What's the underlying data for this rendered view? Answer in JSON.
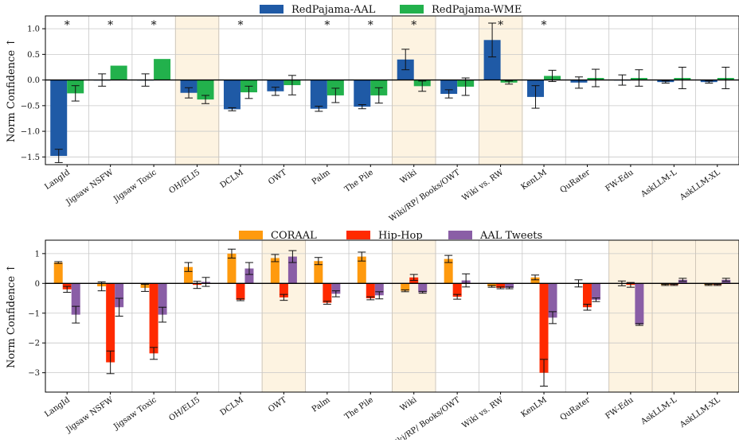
{
  "chart_data": [
    {
      "type": "bar",
      "ylabel": "Norm Confidence ↑",
      "ylim": [
        -1.65,
        1.25
      ],
      "yticks": [
        -1.5,
        -1.0,
        -0.5,
        0.0,
        0.5,
        1.0
      ],
      "ytick_labels": [
        "−1.5",
        "−1.0",
        "−0.5",
        "0.0",
        "0.5",
        "1.0"
      ],
      "grid": true,
      "legend_position": "top-center",
      "categories": [
        "LangId",
        "Jigsaw NSFW",
        "Jigsaw Toxic",
        "OH/ELI5",
        "DCLM",
        "OWT",
        "Palm",
        "The Pile",
        "Wiki",
        "Wiki/RP/ Books/OWT",
        "Wiki vs. RW",
        "KenLM",
        "QuRater",
        "FW-Edu",
        "AskLLM-L",
        "AskLLM-XL"
      ],
      "highlighted": [
        "OH/ELI5",
        "Wiki",
        "Wiki vs. RW"
      ],
      "significance_marker": "*",
      "significant": [
        "LangId",
        "Jigsaw NSFW",
        "Jigsaw Toxic",
        "DCLM",
        "Palm",
        "The Pile",
        "Wiki",
        "Wiki vs. RW",
        "KenLM"
      ],
      "series": [
        {
          "name": "RedPajama-AAL",
          "color": "#1f5aa6",
          "values": [
            -1.48,
            0.0,
            0.0,
            -0.25,
            -0.57,
            -0.22,
            -0.56,
            -0.52,
            0.4,
            -0.27,
            0.78,
            -0.33,
            -0.05,
            0.0,
            -0.04,
            -0.04
          ],
          "errors": [
            0.13,
            0.12,
            0.12,
            0.1,
            0.03,
            0.08,
            0.05,
            0.04,
            0.2,
            0.08,
            0.33,
            0.22,
            0.11,
            0.1,
            0.02,
            0.02
          ]
        },
        {
          "name": "RedPajama-WME",
          "color": "#22b14c",
          "values": [
            -0.26,
            0.28,
            0.41,
            -0.38,
            -0.24,
            -0.1,
            -0.3,
            -0.3,
            -0.12,
            -0.13,
            -0.05,
            0.08,
            0.04,
            0.04,
            0.04,
            0.04
          ],
          "errors": [
            0.15,
            0.0,
            0.0,
            0.08,
            0.12,
            0.19,
            0.14,
            0.15,
            0.1,
            0.17,
            0.03,
            0.11,
            0.17,
            0.16,
            0.21,
            0.21
          ]
        }
      ]
    },
    {
      "type": "bar",
      "ylabel": "Norm Confidence ↑",
      "ylim": [
        -3.65,
        1.45
      ],
      "yticks": [
        -3,
        -2,
        -1,
        0,
        1
      ],
      "ytick_labels": [
        "−3",
        "−2",
        "−1",
        "0",
        "1"
      ],
      "grid": true,
      "legend_position": "top-center",
      "categories": [
        "LangId",
        "Jigsaw NSFW",
        "Jigsaw Toxic",
        "OH/ELI5",
        "DCLM",
        "OWT",
        "Palm",
        "The Pile",
        "Wiki",
        "Wiki/RP/ Books/OWT",
        "Wiki vs. RW",
        "KenLM",
        "QuRater",
        "FW-Edu",
        "AskLLM-L",
        "AskLLM-XL"
      ],
      "highlighted": [
        "OWT",
        "Wiki",
        "FW-Edu",
        "AskLLM-L",
        "AskLLM-XL"
      ],
      "series": [
        {
          "name": "CORAAL",
          "color": "#ff9a0e",
          "values": [
            0.7,
            -0.1,
            -0.15,
            0.55,
            1.0,
            0.85,
            0.75,
            0.9,
            -0.25,
            0.82,
            -0.1,
            0.2,
            0.0,
            0.0,
            -0.05,
            -0.05
          ],
          "errors": [
            0.03,
            0.15,
            0.12,
            0.15,
            0.15,
            0.12,
            0.12,
            0.15,
            0.03,
            0.12,
            0.03,
            0.08,
            0.12,
            0.08,
            0.02,
            0.02
          ]
        },
        {
          "name": "Hip-Hop",
          "color": "#ff2a00",
          "values": [
            -0.2,
            -2.65,
            -2.35,
            -0.05,
            -0.55,
            -0.47,
            -0.65,
            -0.5,
            0.2,
            -0.45,
            -0.15,
            -3.0,
            -0.8,
            -0.05,
            -0.05,
            -0.05
          ],
          "errors": [
            0.1,
            0.38,
            0.2,
            0.12,
            0.03,
            0.1,
            0.05,
            0.05,
            0.1,
            0.08,
            0.03,
            0.45,
            0.1,
            0.08,
            0.02,
            0.02
          ]
        },
        {
          "name": "AAL Tweets",
          "color": "#8a5ea6",
          "values": [
            -1.05,
            -0.8,
            -1.05,
            0.05,
            0.5,
            0.9,
            -0.35,
            -0.4,
            -0.3,
            0.1,
            -0.15,
            -1.15,
            -0.55,
            -1.38,
            0.12,
            0.12
          ],
          "errors": [
            0.28,
            0.3,
            0.25,
            0.15,
            0.2,
            0.2,
            0.1,
            0.12,
            0.03,
            0.22,
            0.03,
            0.2,
            0.06,
            0.03,
            0.05,
            0.05
          ]
        }
      ]
    }
  ]
}
